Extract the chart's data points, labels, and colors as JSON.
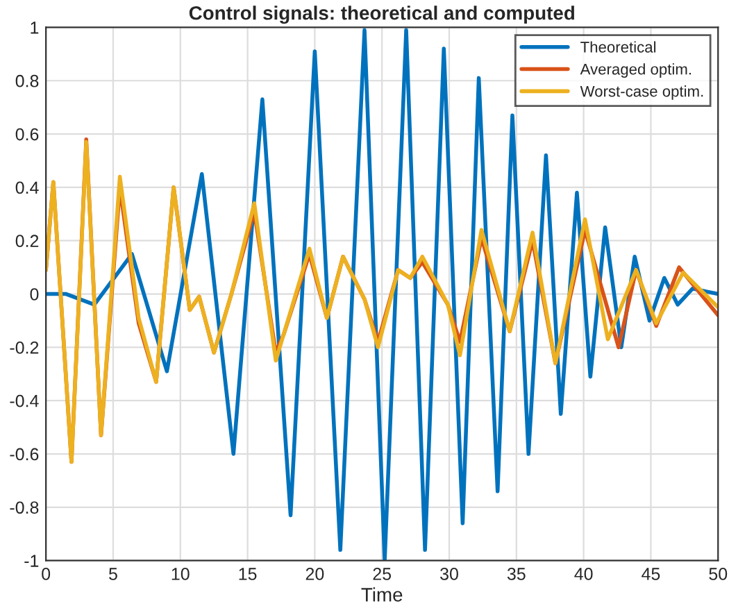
{
  "chart_data": {
    "type": "line",
    "title": "Control signals: theoretical and computed",
    "xlabel": "Time",
    "xlim": [
      0,
      50
    ],
    "ylim": [
      -1,
      1
    ],
    "xticks": [
      0,
      5,
      10,
      15,
      20,
      25,
      30,
      35,
      40,
      45,
      50
    ],
    "yticks": [
      -1,
      -0.8,
      -0.6,
      -0.4,
      -0.2,
      0,
      0.2,
      0.4,
      0.6,
      0.8,
      1
    ],
    "grid": true,
    "legend": "top right",
    "marker": "none",
    "line_style": "solid",
    "series": [
      {
        "name": "Theoretical",
        "color": "#0072bd",
        "x": [
          0,
          1.5,
          3.6,
          6.4,
          9.0,
          11.6,
          13.95,
          16.1,
          18.2,
          20.0,
          21.9,
          23.7,
          25.2,
          26.8,
          28.2,
          29.6,
          31.0,
          32.2,
          33.6,
          34.7,
          35.9,
          37.2,
          38.3,
          39.5,
          40.5,
          41.6,
          42.8,
          43.8,
          44.9,
          46.0,
          47.0,
          48.1,
          50
        ],
        "values": [
          0,
          0,
          -0.04,
          0.15,
          -0.29,
          0.45,
          -0.6,
          0.73,
          -0.83,
          0.91,
          -0.96,
          0.99,
          -1,
          0.99,
          -0.96,
          0.92,
          -0.86,
          0.81,
          -0.74,
          0.67,
          -0.6,
          0.52,
          -0.45,
          0.38,
          -0.31,
          0.25,
          -0.2,
          0.14,
          -0.1,
          0.06,
          -0.04,
          0.02,
          0
        ]
      },
      {
        "name": "Averaged optim.",
        "color": "#d95319",
        "x": [
          0,
          0.55,
          1.9,
          3.0,
          4.1,
          5.5,
          6.9,
          8.2,
          9.5,
          10.7,
          11.4,
          12.5,
          13.8,
          15.5,
          17.1,
          17.7,
          19.6,
          20.9,
          22.1,
          23.7,
          24.7,
          26.2,
          27.1,
          28.0,
          29.9,
          30.8,
          32.4,
          34.5,
          36.2,
          37.9,
          40.1,
          42.6,
          43.9,
          45.4,
          47.1,
          50
        ],
        "values": [
          0.09,
          0.42,
          -0.63,
          0.58,
          -0.53,
          0.4,
          -0.11,
          -0.33,
          0.4,
          -0.06,
          -0.01,
          -0.22,
          0,
          0.31,
          -0.22,
          -0.15,
          0.15,
          -0.09,
          0.14,
          -0.02,
          -0.18,
          0.09,
          0.06,
          0.12,
          -0.04,
          -0.18,
          0.21,
          -0.14,
          0.2,
          -0.26,
          0.24,
          -0.2,
          0.09,
          -0.12,
          0.1,
          -0.08
        ]
      },
      {
        "name": "Worst-case optim.",
        "color": "#edb120",
        "x": [
          0,
          0.55,
          1.9,
          3.0,
          4.1,
          5.5,
          6.9,
          8.2,
          9.5,
          10.7,
          11.4,
          12.5,
          13.8,
          15.5,
          17.1,
          19.6,
          20.9,
          22.1,
          23.7,
          24.7,
          26.2,
          27.1,
          28.0,
          29.9,
          30.8,
          32.4,
          34.5,
          36.2,
          37.9,
          40.1,
          41.8,
          43.9,
          45.4,
          47.4,
          50
        ],
        "values": [
          0.09,
          0.42,
          -0.63,
          0.57,
          -0.53,
          0.44,
          -0.09,
          -0.33,
          0.4,
          -0.06,
          -0.01,
          -0.22,
          0,
          0.34,
          -0.25,
          0.17,
          -0.09,
          0.14,
          -0.02,
          -0.2,
          0.09,
          0.06,
          0.14,
          -0.04,
          -0.23,
          0.24,
          -0.14,
          0.23,
          -0.26,
          0.28,
          -0.17,
          0.09,
          -0.11,
          0.08,
          -0.05
        ]
      }
    ]
  }
}
